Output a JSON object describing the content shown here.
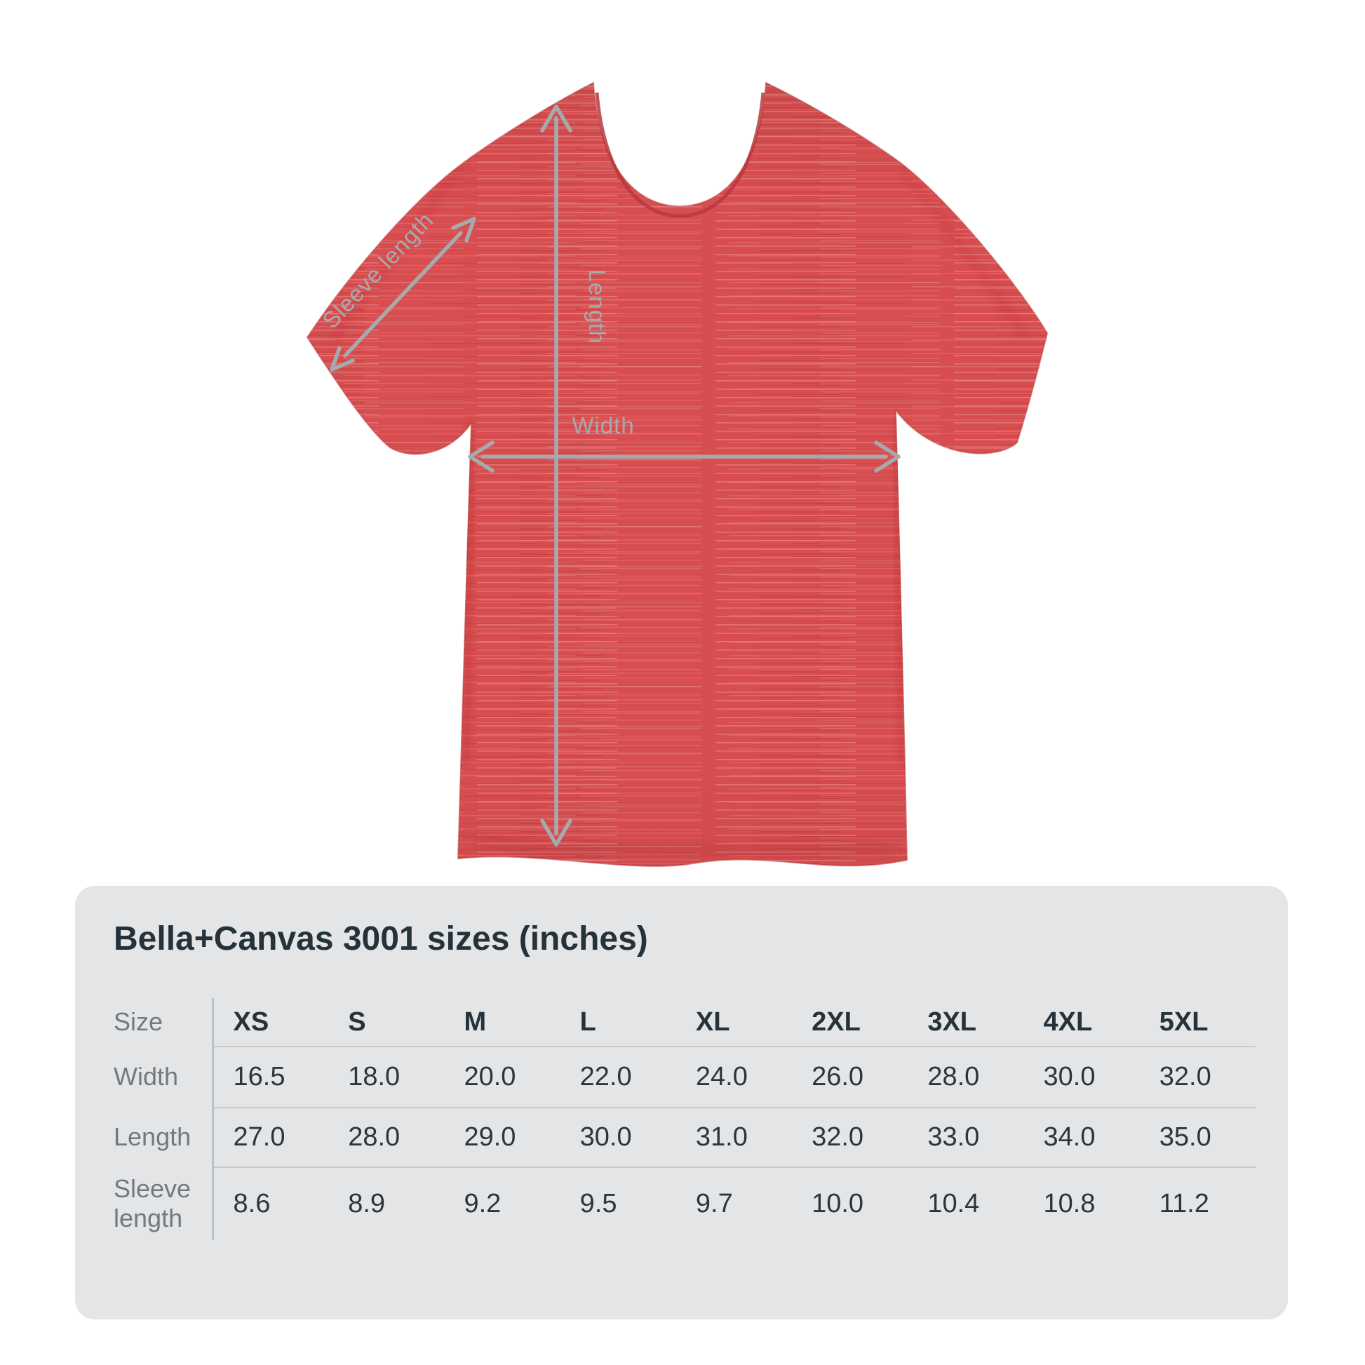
{
  "diagram": {
    "shirt_color": "#d84d4f",
    "arrow_color": "#a7aaac",
    "labels": {
      "sleeve_length": "Sleeve length",
      "length": "Length",
      "width": "Width"
    }
  },
  "size_chart": {
    "title": "Bella+Canvas 3001 sizes (inches)",
    "corner_label": "Size",
    "columns": [
      "XS",
      "S",
      "M",
      "L",
      "XL",
      "2XL",
      "3XL",
      "4XL",
      "5XL"
    ],
    "rows": [
      {
        "label": "Width",
        "values": [
          "16.5",
          "18.0",
          "20.0",
          "22.0",
          "24.0",
          "26.0",
          "28.0",
          "30.0",
          "32.0"
        ]
      },
      {
        "label": "Length",
        "values": [
          "27.0",
          "28.0",
          "29.0",
          "30.0",
          "31.0",
          "32.0",
          "33.0",
          "34.0",
          "35.0"
        ]
      },
      {
        "label": "Sleeve length",
        "values": [
          "8.6",
          "8.9",
          "9.2",
          "9.5",
          "9.7",
          "10.0",
          "10.4",
          "10.8",
          "11.2"
        ]
      }
    ],
    "panel_bg": "#e4e5e7",
    "text_dark": "#25323a",
    "text_gray": "#75797c"
  }
}
